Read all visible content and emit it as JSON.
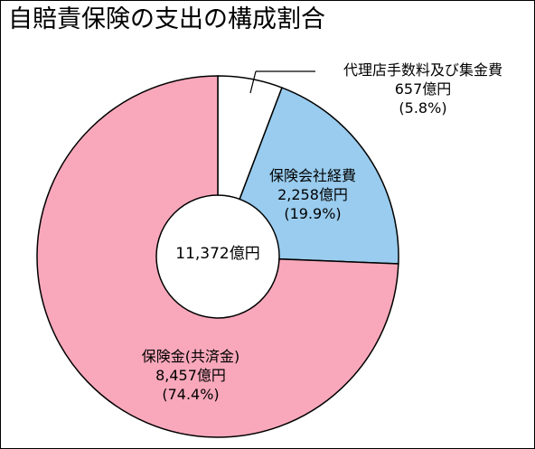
{
  "chart_data": {
    "type": "pie",
    "title": "自賠責保険の支出の構成割合",
    "center_label": "11,372億円",
    "slices": [
      {
        "name": "代理店手数料及び集金費",
        "value": 657,
        "amount_label": "657億円",
        "percent_label": "(5.8%)",
        "color": "#ffffff"
      },
      {
        "name": "保険会社経費",
        "value": 2258,
        "amount_label": "2,258億円",
        "percent_label": "(19.9%)",
        "color": "#99ccee"
      },
      {
        "name": "保険金(共済金)",
        "value": 8457,
        "amount_label": "8,457億円",
        "percent_label": "(74.4%)",
        "color": "#f9a8bb"
      }
    ]
  }
}
